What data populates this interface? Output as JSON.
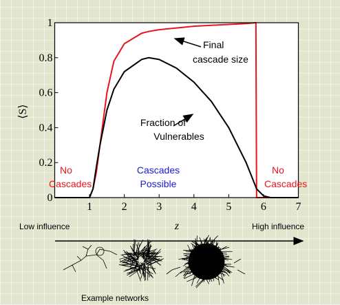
{
  "chart_data": {
    "type": "line",
    "x": [
      0,
      1,
      1.1,
      1.2,
      1.3,
      1.5,
      1.7,
      2,
      2.5,
      2.7,
      3,
      3.5,
      4,
      4.5,
      5,
      5.5,
      5.78,
      5.8,
      6,
      6.2,
      7
    ],
    "series": [
      {
        "color": "#e8141b",
        "values": [
          0,
          0,
          0.05,
          0.15,
          0.3,
          0.6,
          0.78,
          0.88,
          0.94,
          0.95,
          0.96,
          0.97,
          0.98,
          0.985,
          0.99,
          0.995,
          1,
          0,
          0,
          0,
          0
        ]
      },
      {
        "color": "#000000",
        "values": [
          0,
          0,
          0.05,
          0.18,
          0.3,
          0.5,
          0.62,
          0.72,
          0.79,
          0.8,
          0.79,
          0.74,
          0.66,
          0.55,
          0.4,
          0.2,
          0.06,
          0.05,
          0.01,
          0,
          0
        ]
      }
    ],
    "xlim": [
      0,
      7
    ],
    "xticks": [
      1,
      2,
      3,
      4,
      5,
      6,
      7
    ],
    "ylim": [
      0,
      1
    ],
    "yticks": [
      0,
      {
        "value": 0.2,
        "label": "0.2"
      },
      {
        "value": 0.4,
        "label": "0.4"
      },
      {
        "value": 0.6,
        "label": "0.6"
      },
      {
        "value": 0.8,
        "label": "0.8"
      },
      1
    ],
    "ylabel": "⟨S⟩",
    "xlabel": "z",
    "annotations": [
      {
        "lines": [
          "Final",
          "cascade size"
        ],
        "color": "#000000"
      },
      {
        "lines": [
          "Fraction of",
          "Vulnerables"
        ],
        "color": "#000000"
      },
      {
        "lines": [
          "No",
          "Cascades"
        ],
        "color": "#e8141b"
      },
      {
        "lines": [
          "Cascades",
          "Possible"
        ],
        "color": "#1a1ad0"
      },
      {
        "lines": [
          "No",
          "Cascades"
        ],
        "color": "#e8141b"
      }
    ],
    "low_label": "Low influence",
    "high_label": "High influence",
    "networks_label": "Example networks"
  }
}
